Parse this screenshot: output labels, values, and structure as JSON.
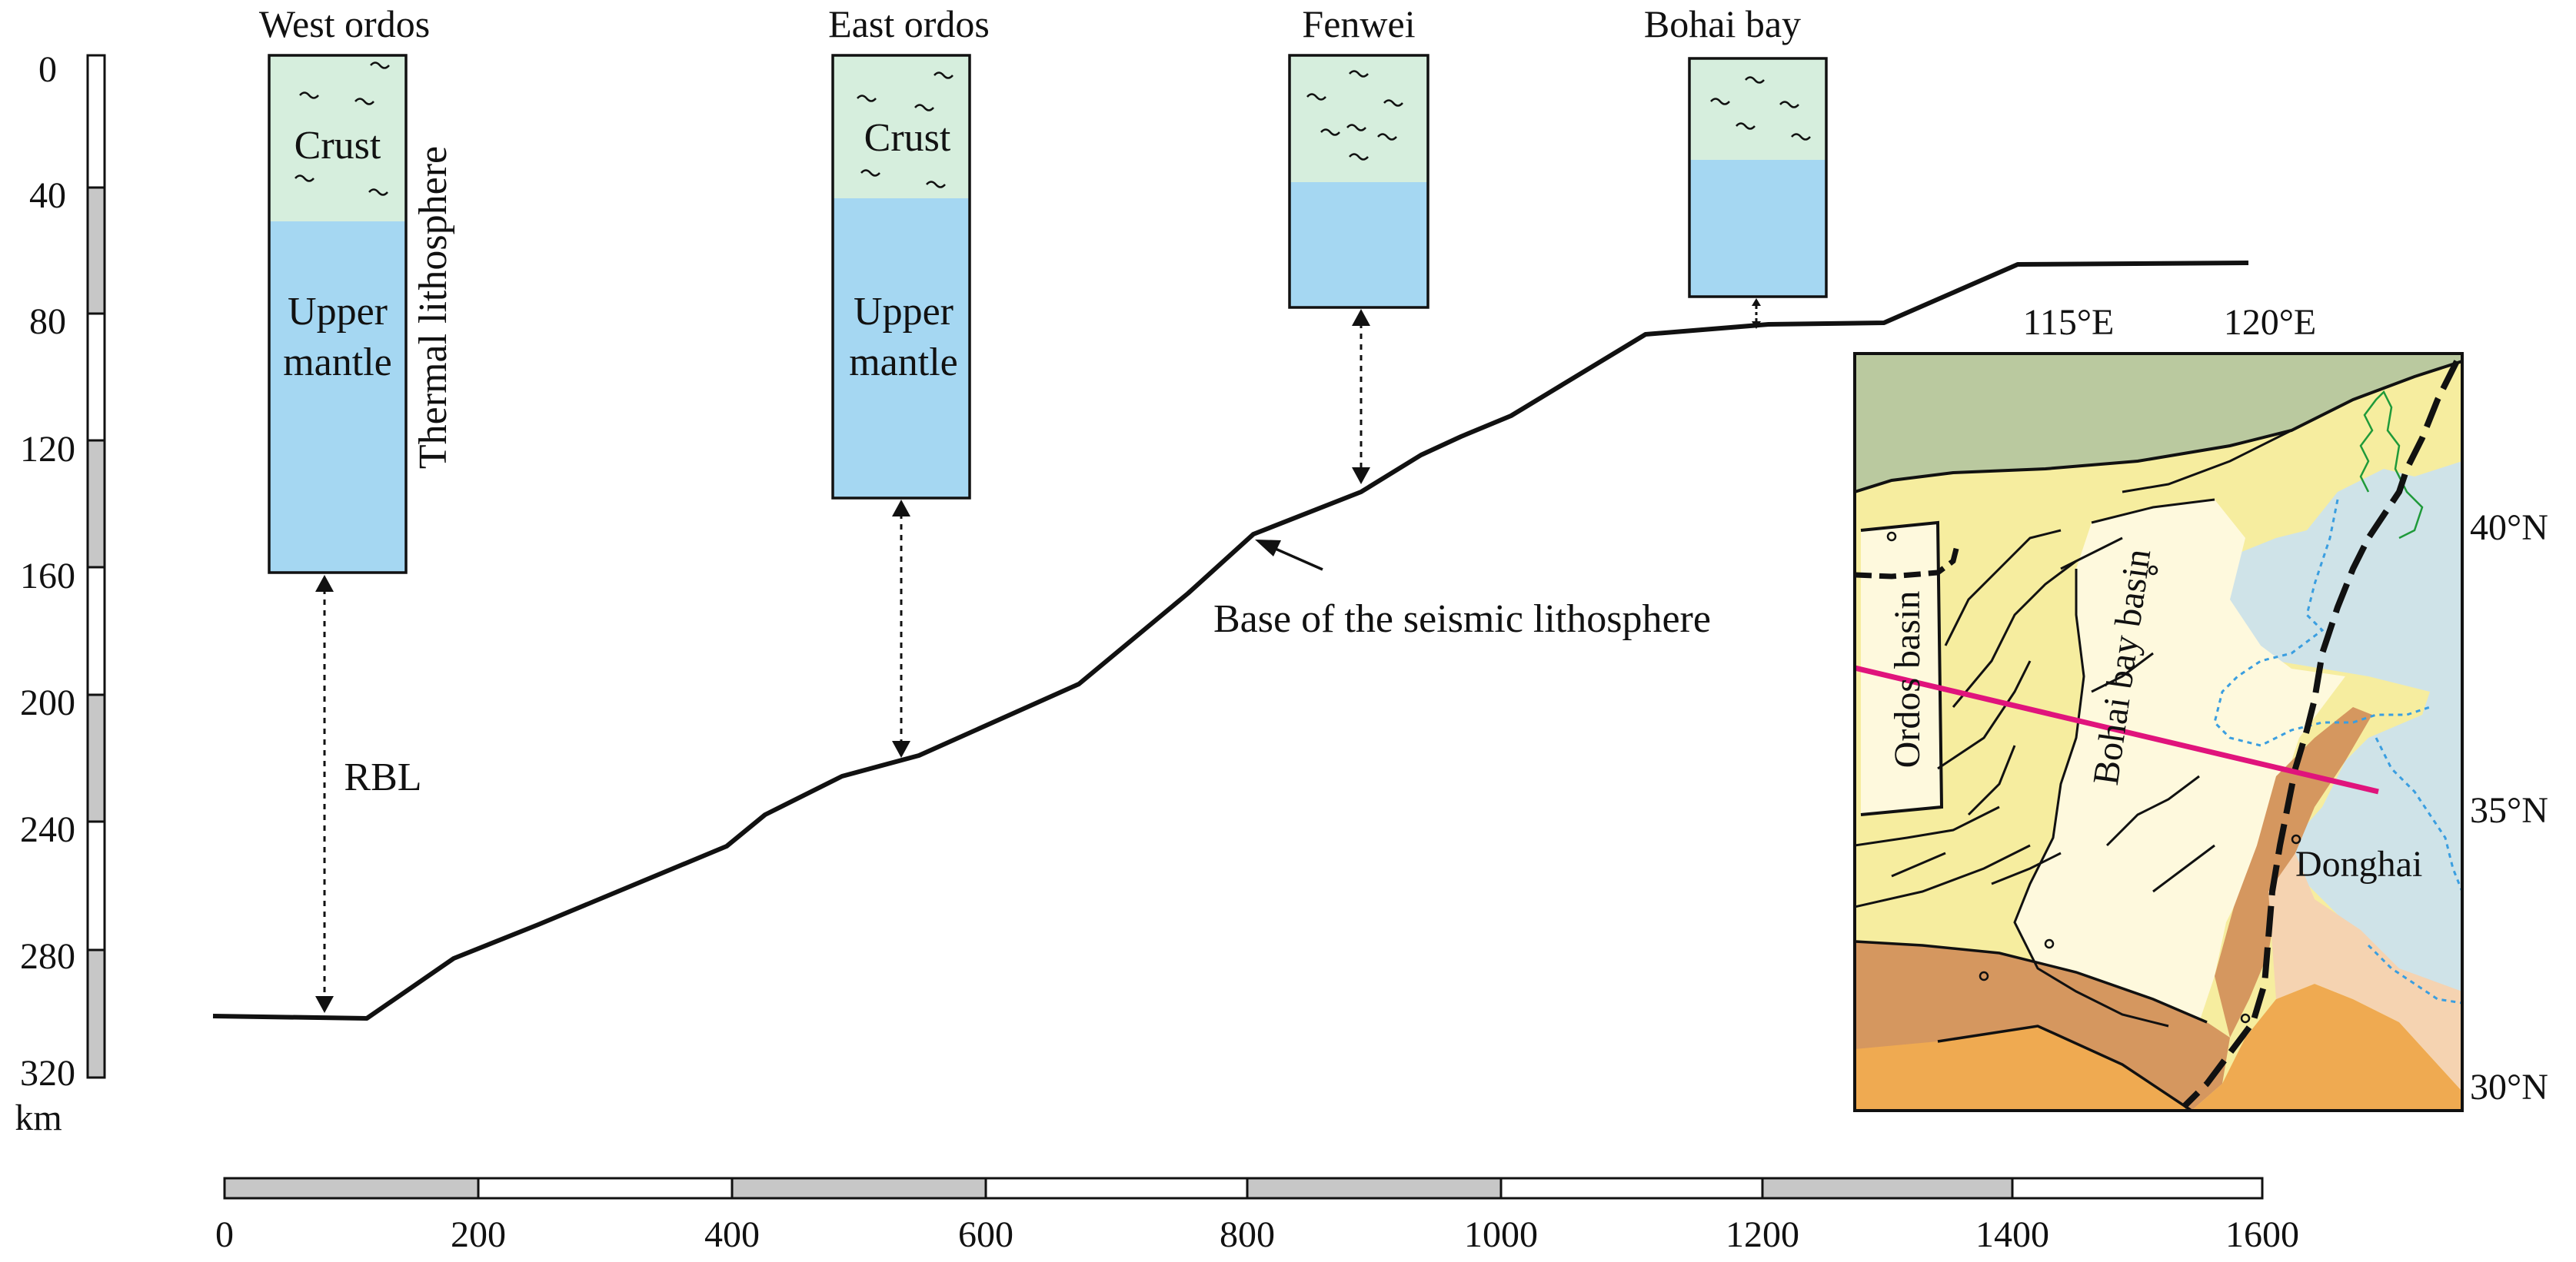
{
  "columns": [
    {
      "name": "West ordos",
      "crust_label": "Crust",
      "mantle_label_1": "Upper",
      "mantle_label_2": "mantle",
      "side_label": "Thermal lithosphere",
      "gap_label": "RBL"
    },
    {
      "name": "East ordos",
      "crust_label": "Crust",
      "mantle_label_1": "Upper",
      "mantle_label_2": "mantle"
    },
    {
      "name": "Fenwei"
    },
    {
      "name": "Bohai bay"
    }
  ],
  "depth_axis": {
    "ticks": [
      "0",
      "40",
      "80",
      "120",
      "160",
      "200",
      "240",
      "280",
      "320"
    ],
    "unit": "km",
    "range": [
      0,
      320
    ]
  },
  "distance_axis": {
    "ticks": [
      "0",
      "200",
      "400",
      "600",
      "800",
      "1000",
      "1200",
      "1400",
      "1600"
    ],
    "range": [
      0,
      1600
    ]
  },
  "seismic_base_label": "Base of the seismic lithosphere",
  "map": {
    "lon_labels": [
      "115°E",
      "120°E"
    ],
    "lat_labels": [
      "40°N",
      "35°N",
      "30°N"
    ],
    "region_labels": {
      "ordos": "Ordos basin",
      "bohai": "Bohai bay basin",
      "donghai": "Donghai"
    }
  },
  "colors": {
    "crust": "#d6eedd",
    "mantle": "#a5d7f2",
    "map_green": "#bac99f",
    "map_yellow": "#f6ed9f",
    "map_cream": "#fef9dd",
    "map_tan": "#d5975f",
    "map_orange": "#efaa51",
    "map_peach": "#f5d3b1",
    "map_sea": "#cfe3e8",
    "profile_line": "#e0147c"
  }
}
